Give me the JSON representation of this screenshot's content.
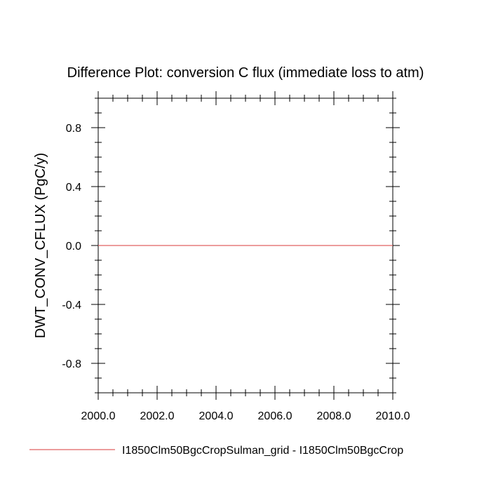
{
  "chart_data": {
    "type": "line",
    "title": "Difference Plot: conversion C flux (immediate loss to atm)",
    "xlabel": "",
    "ylabel": "DWT_CONV_CFLUX  (PgC/y)",
    "xlim": [
      2000,
      2010
    ],
    "ylim": [
      -1.0,
      1.0
    ],
    "x_ticks": [
      2000,
      2002,
      2004,
      2006,
      2008,
      2010
    ],
    "x_tick_labels": [
      "2000.0",
      "2002.0",
      "2004.0",
      "2006.0",
      "2008.0",
      "2010.0"
    ],
    "y_ticks": [
      0.8,
      0.4,
      0.0,
      -0.4,
      -0.8
    ],
    "y_tick_labels": [
      "0.8",
      "0.4",
      "0.0",
      "-0.4",
      "-0.8"
    ],
    "grid": false,
    "legend_placement": "bottom",
    "series": [
      {
        "name": "I1850Clm50BgcCropSulman_grid - I1850Clm50BgcCrop",
        "color": "#e06060",
        "x": [
          2000,
          2010
        ],
        "y": [
          0.0,
          0.0
        ]
      }
    ]
  }
}
